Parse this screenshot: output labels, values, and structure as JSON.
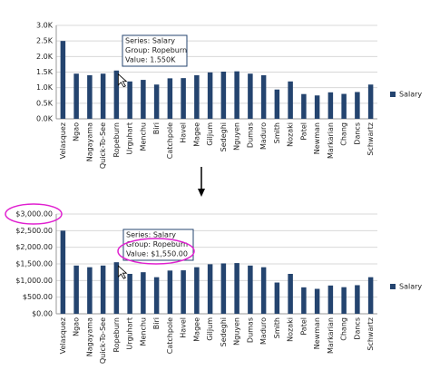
{
  "chart_data": [
    {
      "type": "bar",
      "categories": [
        "Velasquez",
        "Ngao",
        "Nagayama",
        "Quick-To-See",
        "Ropeburn",
        "Urguhart",
        "Menchu",
        "Biri",
        "Catchpole",
        "Havel",
        "Magee",
        "Giljum",
        "Sedeghi",
        "Nguyen",
        "Dumas",
        "Maduro",
        "Smith",
        "Nozaki",
        "Patel",
        "Newman",
        "Markarian",
        "Chang",
        "Dancs",
        "Schwartz"
      ],
      "series": [
        {
          "name": "Salary",
          "color": "#24446f",
          "values": [
            2500,
            1450,
            1400,
            1450,
            1550,
            1200,
            1250,
            1100,
            1300,
            1307,
            1400,
            1490,
            1515,
            1525,
            1450,
            1400,
            940,
            1200,
            795,
            750,
            850,
            800,
            860,
            1100
          ]
        }
      ],
      "ylim": [
        0,
        3000
      ],
      "yticks": [
        {
          "value": 0,
          "label": "0.0K"
        },
        {
          "value": 500,
          "label": "0.5K"
        },
        {
          "value": 1000,
          "label": "1.0K"
        },
        {
          "value": 1500,
          "label": "1.5K"
        },
        {
          "value": 2000,
          "label": "2.0K"
        },
        {
          "value": 2500,
          "label": "2.5K"
        },
        {
          "value": 3000,
          "label": "3.0K"
        }
      ],
      "grid": true,
      "legend": "right",
      "tooltip": [
        "Series: Salary",
        "Group: Ropeburn",
        "Value: 1.550K"
      ]
    },
    {
      "type": "bar",
      "categories": [
        "Velasquez",
        "Ngao",
        "Nagayama",
        "Quick-To-See",
        "Ropeburn",
        "Urguhart",
        "Menchu",
        "Biri",
        "Catchpole",
        "Havel",
        "Magee",
        "Giljum",
        "Sedeghi",
        "Nguyen",
        "Dumas",
        "Maduro",
        "Smith",
        "Nozaki",
        "Patel",
        "Newman",
        "Markarian",
        "Chang",
        "Dancs",
        "Schwartz"
      ],
      "series": [
        {
          "name": "Salary",
          "color": "#24446f",
          "values": [
            2500,
            1450,
            1400,
            1450,
            1550,
            1200,
            1250,
            1100,
            1300,
            1307,
            1400,
            1490,
            1515,
            1525,
            1450,
            1400,
            940,
            1200,
            795,
            750,
            850,
            800,
            860,
            1100
          ]
        }
      ],
      "ylim": [
        0,
        3000
      ],
      "yticks": [
        {
          "value": 0,
          "label": "$0.00"
        },
        {
          "value": 500,
          "label": "$500.00"
        },
        {
          "value": 1000,
          "label": "$1,000.00"
        },
        {
          "value": 1500,
          "label": "$1,500.00"
        },
        {
          "value": 2000,
          "label": "$2,000.00"
        },
        {
          "value": 2500,
          "label": "$2,500.00"
        },
        {
          "value": 3000,
          "label": "$3,000.00"
        }
      ],
      "grid": true,
      "legend": "right",
      "tooltip": [
        "Series: Salary",
        "Group: Ropeburn",
        "Value: $1,550.00"
      ]
    }
  ]
}
